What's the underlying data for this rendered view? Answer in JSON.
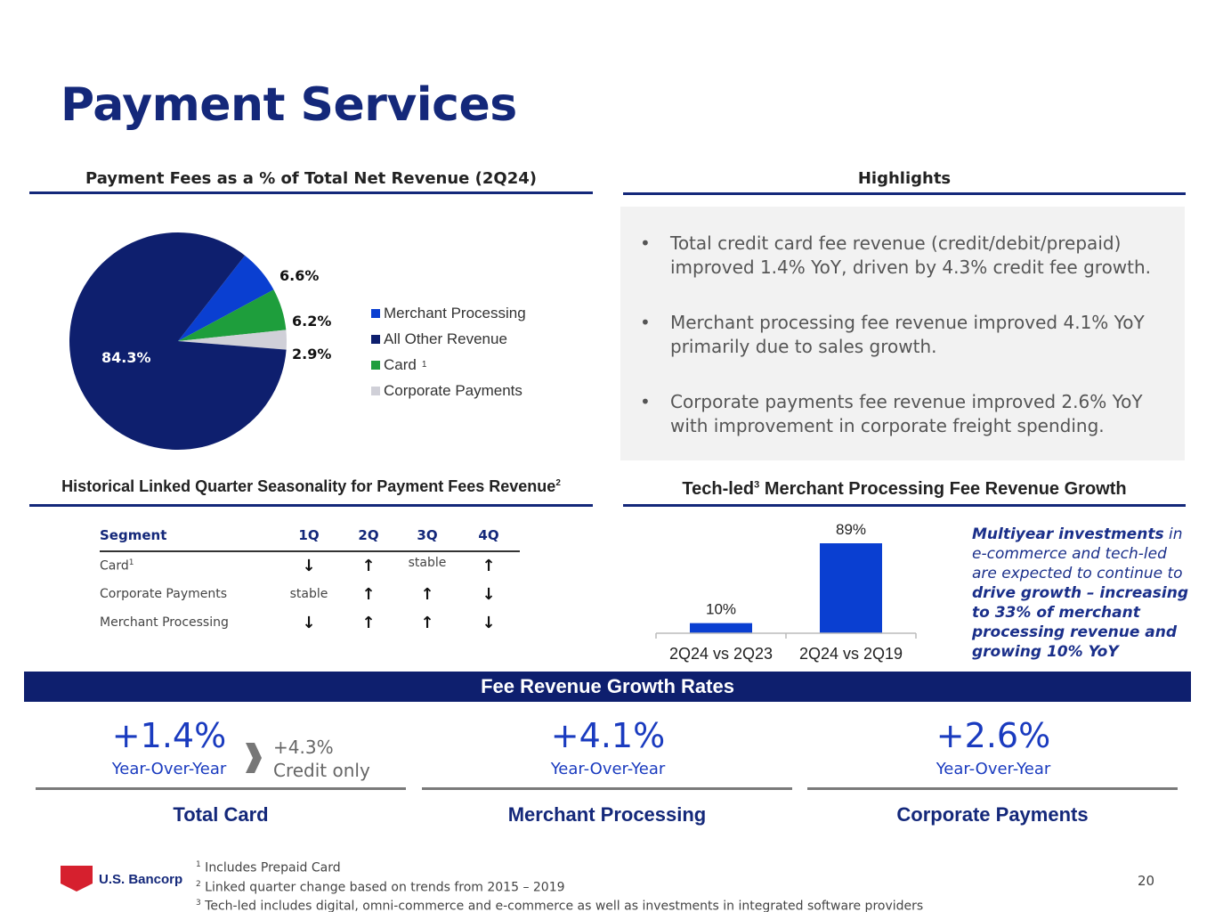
{
  "title": "Payment Services",
  "pie_section": {
    "heading": "Payment Fees as a % of Total Net Revenue (2Q24)",
    "slices": [
      {
        "label": "Merchant Processing",
        "value": 6.6,
        "display": "6.6%",
        "color": "#0a3fd1"
      },
      {
        "label": "All Other Revenue",
        "value": 84.3,
        "display": "84.3%",
        "color": "#0e1f6e"
      },
      {
        "label": "Card",
        "value": 6.2,
        "display": "6.2%",
        "color": "#1e9e3c",
        "sup": "1"
      },
      {
        "label": "Corporate Payments",
        "value": 2.9,
        "display": "2.9%",
        "color": "#d0d0d8"
      }
    ]
  },
  "highlights": {
    "heading": "Highlights",
    "items": [
      "Total credit card fee revenue (credit/debit/prepaid) improved 1.4% YoY, driven by 4.3% credit fee growth.",
      "Merchant processing fee revenue improved 4.1% YoY primarily due to sales growth.",
      "Corporate payments fee revenue improved 2.6% YoY with improvement in corporate freight spending."
    ]
  },
  "seasonality": {
    "heading": "Historical Linked Quarter Seasonality for  Payment Fees Revenue",
    "heading_sup": "2",
    "columns": [
      "Segment",
      "1Q",
      "2Q",
      "3Q",
      "4Q"
    ],
    "rows": [
      {
        "segment": "Card",
        "sup": "1",
        "q1": "↓",
        "q2": "↑",
        "q3": "stable",
        "q4": "↑"
      },
      {
        "segment": "Corporate Payments",
        "sup": "",
        "q1": "stable",
        "q2": "↑",
        "q3": "↑",
        "q4": "↓"
      },
      {
        "segment": "Merchant Processing",
        "sup": "",
        "q1": "↓",
        "q2": "↑",
        "q3": "↑",
        "q4": "↓"
      }
    ]
  },
  "chart_data": {
    "type": "bar",
    "title": "Tech-led Merchant Processing Fee Revenue Growth",
    "title_sup": "3",
    "title_pre": "Tech-led",
    "title_post": " Merchant Processing Fee Revenue Growth",
    "categories": [
      "2Q24 vs 2Q23",
      "2Q24 vs 2Q19"
    ],
    "values": [
      10,
      89
    ],
    "data_labels": [
      "10%",
      "89%"
    ],
    "ylim": [
      0,
      100
    ],
    "color": "#0a3fd1"
  },
  "multiyear": {
    "part1": "Multiyear investments",
    "part2": " in e-commerce and tech-led are expected to continue to ",
    "part3": "drive growth – increasing to 33% of merchant processing revenue and growing 10% YoY"
  },
  "growth": {
    "band": "Fee Revenue Growth Rates",
    "card": {
      "value": "+1.4%",
      "sub": "Year-Over-Year",
      "credit_value": "+4.3%",
      "credit_label": "Credit only",
      "label": "Total Card"
    },
    "merchant": {
      "value": "+4.1%",
      "sub": "Year-Over-Year",
      "label": "Merchant Processing"
    },
    "corporate": {
      "value": "+2.6%",
      "sub": "Year-Over-Year",
      "label": "Corporate Payments"
    }
  },
  "footnotes": [
    {
      "num": "1",
      "text": " Includes Prepaid Card"
    },
    {
      "num": "2",
      "text": " Linked quarter change based on trends from 2015 – 2019"
    },
    {
      "num": "3",
      "text": " Tech-led includes digital, omni-commerce and e-commerce as well as investments in integrated software providers"
    }
  ],
  "logo_text": "U.S. Bancorp",
  "page_number": "20",
  "colors": {
    "navy": "#14287a",
    "blue": "#1a3bbf",
    "band": "#0e1f6e",
    "logo_red": "#d6202e"
  }
}
